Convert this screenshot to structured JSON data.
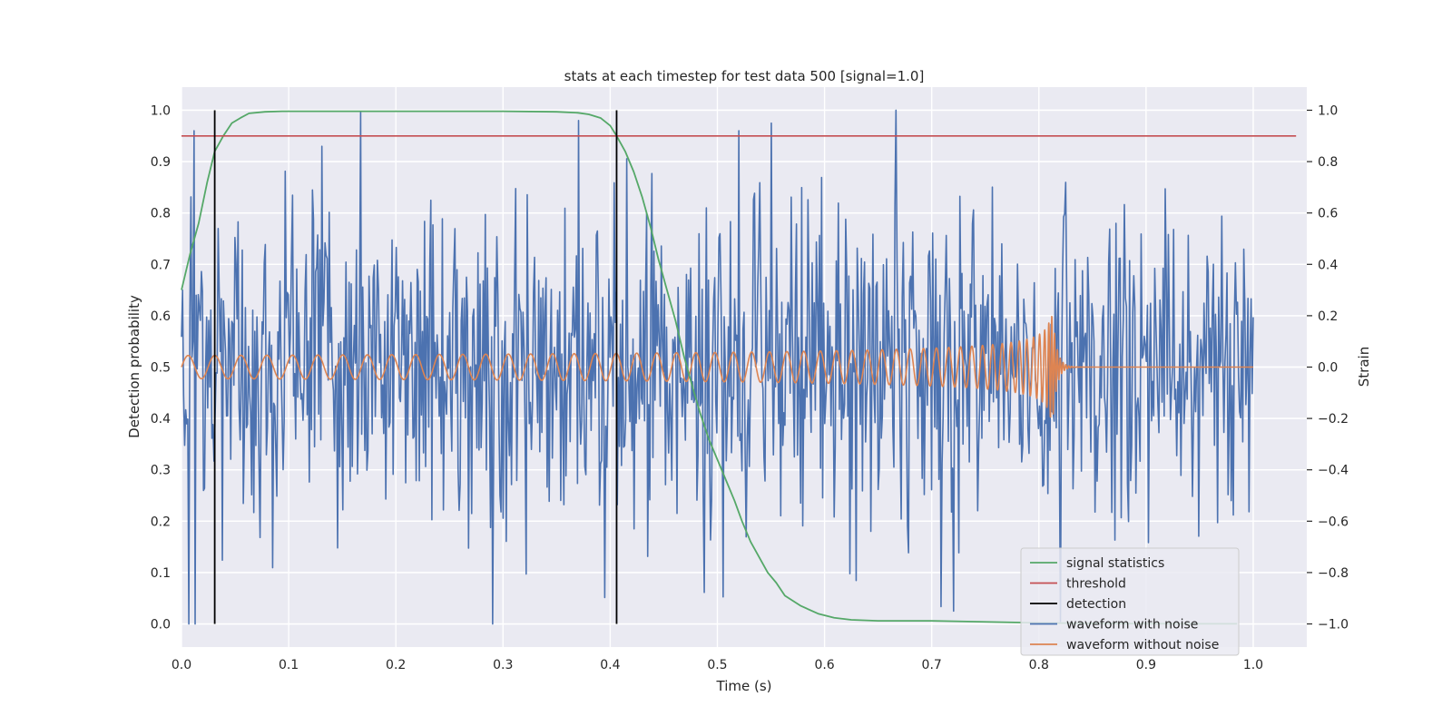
{
  "chart_data": {
    "type": "line",
    "title": "stats at each timestep for test data 500 [signal=1.0]",
    "xlabel": "Time (s)",
    "ylabel": "Detection probability",
    "y2label": "Strain",
    "xlim": [
      0.0,
      1.05
    ],
    "ylim": [
      -0.045,
      1.045
    ],
    "y2lim": [
      -1.09,
      1.09
    ],
    "x_ticks": [
      0.0,
      0.1,
      0.2,
      0.3,
      0.4,
      0.5,
      0.6,
      0.7,
      0.8,
      0.9,
      1.0
    ],
    "x_tick_labels": [
      "0.0",
      "0.1",
      "0.2",
      "0.3",
      "0.4",
      "0.5",
      "0.6",
      "0.7",
      "0.8",
      "0.9",
      "1.0"
    ],
    "y_ticks": [
      0.0,
      0.1,
      0.2,
      0.3,
      0.4,
      0.5,
      0.6,
      0.7,
      0.8,
      0.9,
      1.0
    ],
    "y_tick_labels": [
      "0.0",
      "0.1",
      "0.2",
      "0.3",
      "0.4",
      "0.5",
      "0.6",
      "0.7",
      "0.8",
      "0.9",
      "1.0"
    ],
    "y2_ticks": [
      -1.0,
      -0.8,
      -0.6,
      -0.4,
      -0.2,
      0.0,
      0.2,
      0.4,
      0.6,
      0.8,
      1.0
    ],
    "y2_tick_labels": [
      "−1.0",
      "−0.8",
      "−0.6",
      "−0.4",
      "−0.2",
      "0.0",
      "0.2",
      "0.4",
      "0.6",
      "0.8",
      "1.0"
    ],
    "grid": true,
    "legend_position": "bottom-right",
    "series": [
      {
        "name": "signal statistics",
        "axis": "left",
        "color": "#55a868",
        "x": [
          0.0,
          0.008,
          0.016,
          0.024,
          0.031,
          0.039,
          0.047,
          0.055,
          0.063,
          0.078,
          0.094,
          0.125,
          0.2,
          0.3,
          0.35,
          0.37,
          0.38,
          0.391,
          0.4,
          0.406,
          0.414,
          0.422,
          0.43,
          0.438,
          0.445,
          0.453,
          0.461,
          0.469,
          0.477,
          0.484,
          0.492,
          0.5,
          0.508,
          0.516,
          0.523,
          0.531,
          0.539,
          0.547,
          0.555,
          0.563,
          0.578,
          0.594,
          0.609,
          0.625,
          0.65,
          0.68,
          0.7,
          0.75,
          0.8,
          0.85,
          0.9,
          0.95,
          0.985
        ],
        "values": [
          0.65,
          0.72,
          0.78,
          0.86,
          0.92,
          0.95,
          0.975,
          0.985,
          0.994,
          0.997,
          0.998,
          0.998,
          0.998,
          0.998,
          0.997,
          0.995,
          0.992,
          0.985,
          0.97,
          0.95,
          0.92,
          0.88,
          0.83,
          0.77,
          0.71,
          0.65,
          0.59,
          0.52,
          0.46,
          0.41,
          0.36,
          0.32,
          0.28,
          0.24,
          0.2,
          0.16,
          0.13,
          0.1,
          0.08,
          0.055,
          0.035,
          0.02,
          0.012,
          0.008,
          0.006,
          0.006,
          0.006,
          0.004,
          0.002,
          0.001,
          0.0005,
          0.0003,
          0.0002
        ]
      },
      {
        "name": "threshold",
        "axis": "left",
        "color": "#c44e52",
        "x": [
          0.0,
          1.04
        ],
        "values": [
          0.95,
          0.95
        ]
      },
      {
        "name": "detection",
        "axis": "left",
        "color": "#000000",
        "segments": [
          {
            "x": 0.031,
            "y": [
              0.0,
              1.0
            ]
          },
          {
            "x": 0.406,
            "y": [
              0.0,
              1.0
            ]
          }
        ]
      },
      {
        "name": "waveform with noise",
        "axis": "right",
        "color": "#4c72b0",
        "x_range": [
          0.0,
          1.0
        ],
        "sample_count": 1024,
        "approx_min": -1.0,
        "approx_max": 1.0,
        "approx_std": 0.33,
        "annotated_extremes": [
          {
            "x": 0.012,
            "y": 0.92
          },
          {
            "x": 0.013,
            "y": -1.0
          },
          {
            "x": 0.37,
            "y": 0.96
          },
          {
            "x": 0.52,
            "y": 0.92
          },
          {
            "x": 0.55,
            "y": 0.95
          },
          {
            "x": 0.667,
            "y": 1.0
          },
          {
            "x": 0.72,
            "y": -0.95
          },
          {
            "x": 0.82,
            "y": -0.99
          }
        ]
      },
      {
        "name": "waveform without noise",
        "axis": "right",
        "color": "#dd8452",
        "x_range": [
          0.0,
          1.0
        ],
        "description_points": {
          "merger_time": 0.813,
          "initial_amplitude": 0.045,
          "peak_amplitude": 0.2,
          "initial_frequency_hz": 40
        }
      }
    ]
  }
}
